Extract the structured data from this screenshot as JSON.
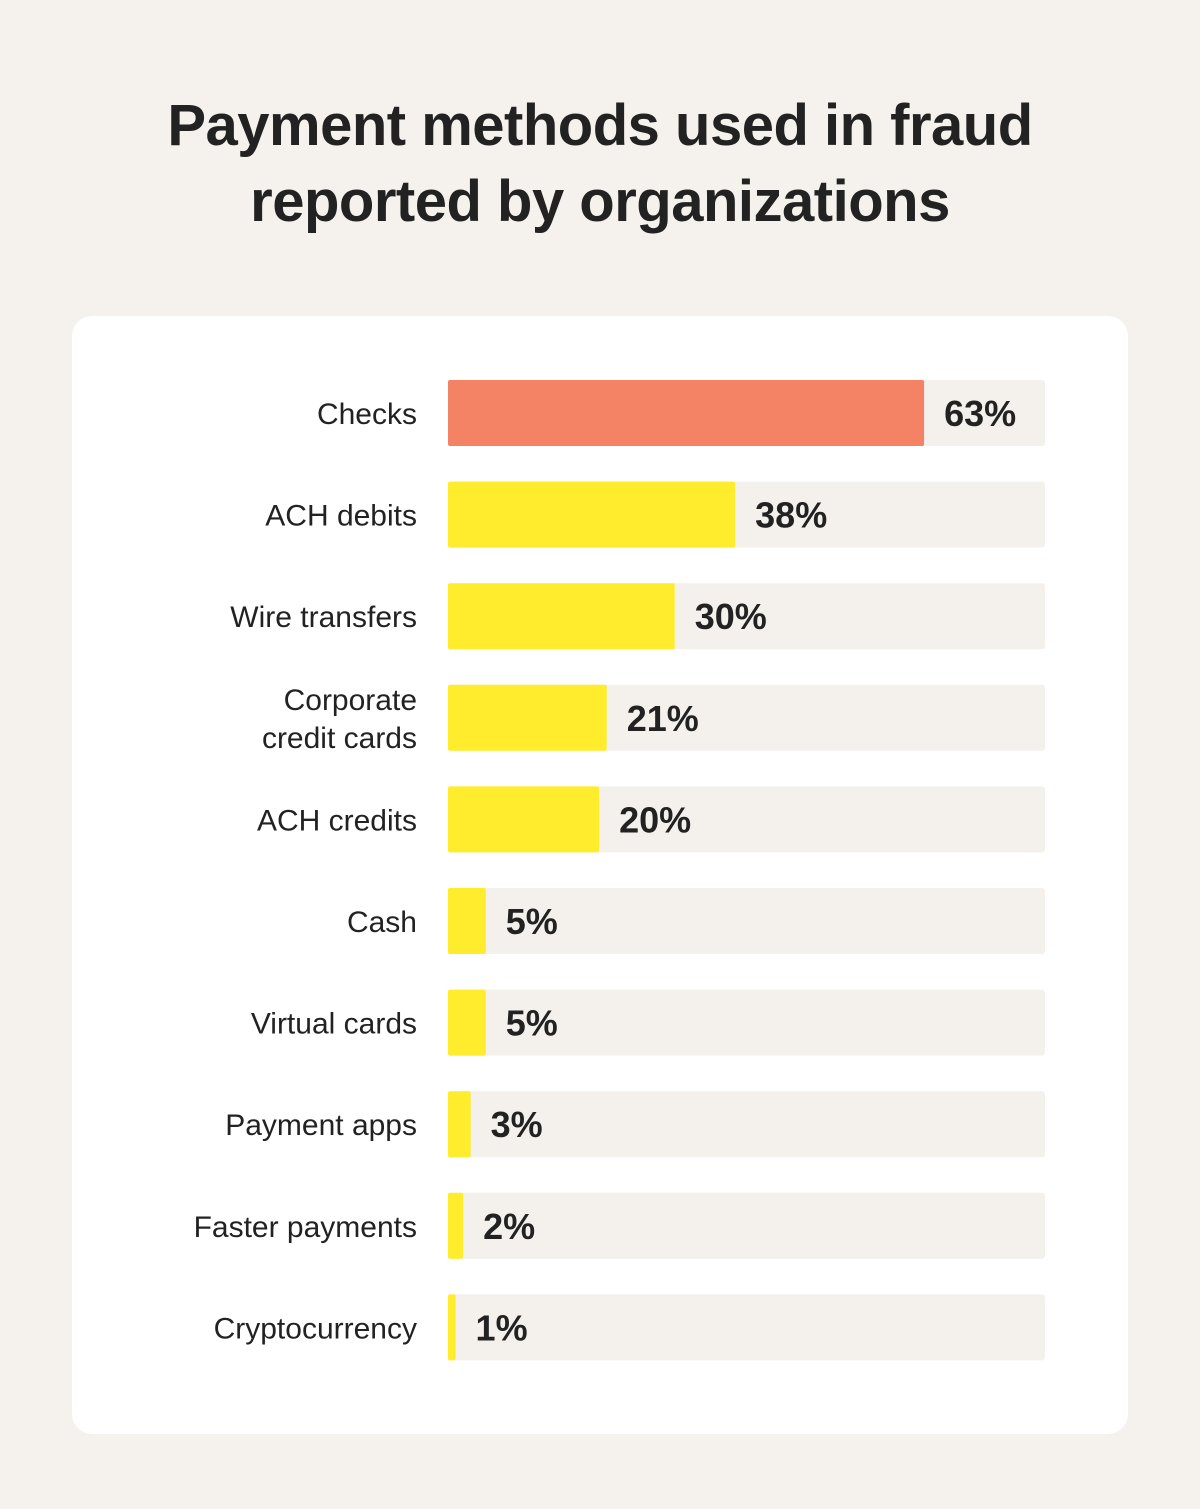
{
  "chart_data": {
    "type": "bar",
    "orientation": "horizontal",
    "title": "Payment methods used in fraud reported by organizations",
    "title_lines": [
      "Payment methods used in fraud",
      "reported by organizations"
    ],
    "categories": [
      "Checks",
      "ACH debits",
      "Wire transfers",
      "Corporate credit cards",
      "ACH credits",
      "Cash",
      "Virtual cards",
      "Payment apps",
      "Faster payments",
      "Cryptocurrency"
    ],
    "category_lines": [
      [
        "Checks"
      ],
      [
        "ACH debits"
      ],
      [
        "Wire transfers"
      ],
      [
        "Corporate",
        "credit cards"
      ],
      [
        "ACH credits"
      ],
      [
        "Cash"
      ],
      [
        "Virtual cards"
      ],
      [
        "Payment apps"
      ],
      [
        "Faster payments"
      ],
      [
        "Cryptocurrency"
      ]
    ],
    "values": [
      63,
      38,
      30,
      21,
      20,
      5,
      5,
      3,
      2,
      1
    ],
    "value_labels": [
      "63%",
      "38%",
      "30%",
      "21%",
      "20%",
      "5%",
      "5%",
      "3%",
      "2%",
      "1%"
    ],
    "xlim": [
      0,
      79
    ],
    "xlabel": "",
    "ylabel": "",
    "grid": false,
    "colors": {
      "highlight": "#f48365",
      "bar": "#ffec2d",
      "track": "#f4f1ed"
    }
  }
}
